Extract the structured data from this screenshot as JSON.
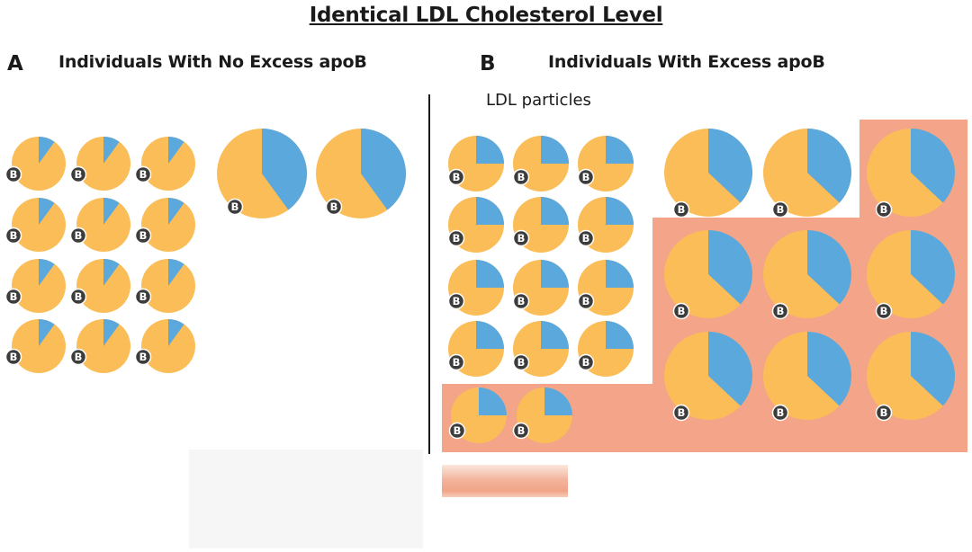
{
  "title": "Identical LDL Cholesterol Level",
  "panels": [
    {
      "letter": "A",
      "title": "Individuals With No Excess apoB"
    },
    {
      "letter": "B",
      "title": "Individuals With Excess apoB",
      "subtitle": "LDL particles"
    }
  ],
  "particle_label": "B",
  "colors": {
    "core": "#fbbd58",
    "surface": "#5ba8dc",
    "excess_region": "#f3a489",
    "badge": "#3c3c3c",
    "badge_text": "#ffffff"
  },
  "particles": {
    "small_surface_fraction": [
      0.1,
      0.25
    ],
    "large_surface_fraction": [
      0.4,
      0.37
    ]
  }
}
